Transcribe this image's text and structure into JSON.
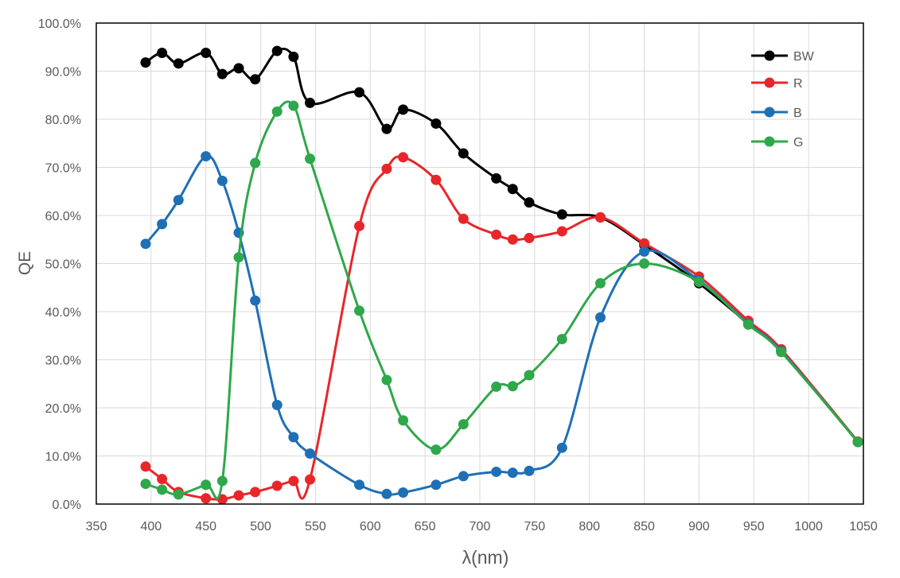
{
  "chart_data": {
    "type": "line",
    "title": "",
    "xlabel": "λ(nm)",
    "ylabel": "QE",
    "xlim": [
      350,
      1050
    ],
    "ylim": [
      0,
      100
    ],
    "x_ticks": [
      "350",
      "400",
      "450",
      "500",
      "550",
      "600",
      "650",
      "700",
      "750",
      "800",
      "850",
      "900",
      "950",
      "1000",
      "1050"
    ],
    "y_ticks": [
      "0.0%",
      "10.0%",
      "20.0%",
      "30.0%",
      "40.0%",
      "50.0%",
      "60.0%",
      "70.0%",
      "80.0%",
      "90.0%",
      "100.0%"
    ],
    "grid": true,
    "legend_position": "top-right",
    "smoothed": true,
    "x": [
      395,
      410,
      425,
      450,
      465,
      480,
      495,
      515,
      530,
      545,
      590,
      615,
      630,
      660,
      685,
      715,
      730,
      745,
      775,
      810,
      850,
      900,
      945,
      975,
      1045
    ],
    "series": [
      {
        "name": "BW",
        "color": "#000000",
        "values": [
          91.8,
          93.8,
          91.6,
          93.8,
          89.4,
          90.6,
          88.3,
          94.2,
          93.0,
          83.4,
          85.6,
          78.0,
          82.0,
          79.1,
          72.9,
          67.7,
          65.5,
          62.7,
          60.2,
          59.6,
          53.9,
          45.9,
          37.5,
          31.8,
          12.9
        ]
      },
      {
        "name": "R",
        "color": "#e8262a",
        "values": [
          7.8,
          5.2,
          2.5,
          1.2,
          1.0,
          1.8,
          2.5,
          3.8,
          4.8,
          5.1,
          57.8,
          69.7,
          72.1,
          67.4,
          59.3,
          56.0,
          55.0,
          55.3,
          56.7,
          59.6,
          54.2,
          47.3,
          38.1,
          32.2,
          13.0
        ]
      },
      {
        "name": "B",
        "color": "#1f6fb5",
        "values": [
          54.1,
          58.2,
          63.2,
          72.3,
          67.2,
          56.4,
          42.3,
          20.6,
          13.9,
          10.5,
          4.0,
          2.1,
          2.4,
          4.0,
          5.8,
          6.7,
          6.5,
          6.9,
          11.7,
          38.8,
          52.5,
          46.5,
          37.5,
          31.8,
          12.9
        ]
      },
      {
        "name": "G",
        "color": "#2ea84a",
        "values": [
          4.2,
          3.0,
          2.0,
          4.0,
          4.8,
          51.3,
          70.9,
          81.6,
          82.8,
          71.8,
          40.2,
          25.8,
          17.4,
          11.3,
          16.6,
          24.4,
          24.5,
          26.8,
          34.3,
          45.9,
          50.0,
          46.2,
          37.3,
          31.6,
          12.9
        ]
      }
    ]
  }
}
